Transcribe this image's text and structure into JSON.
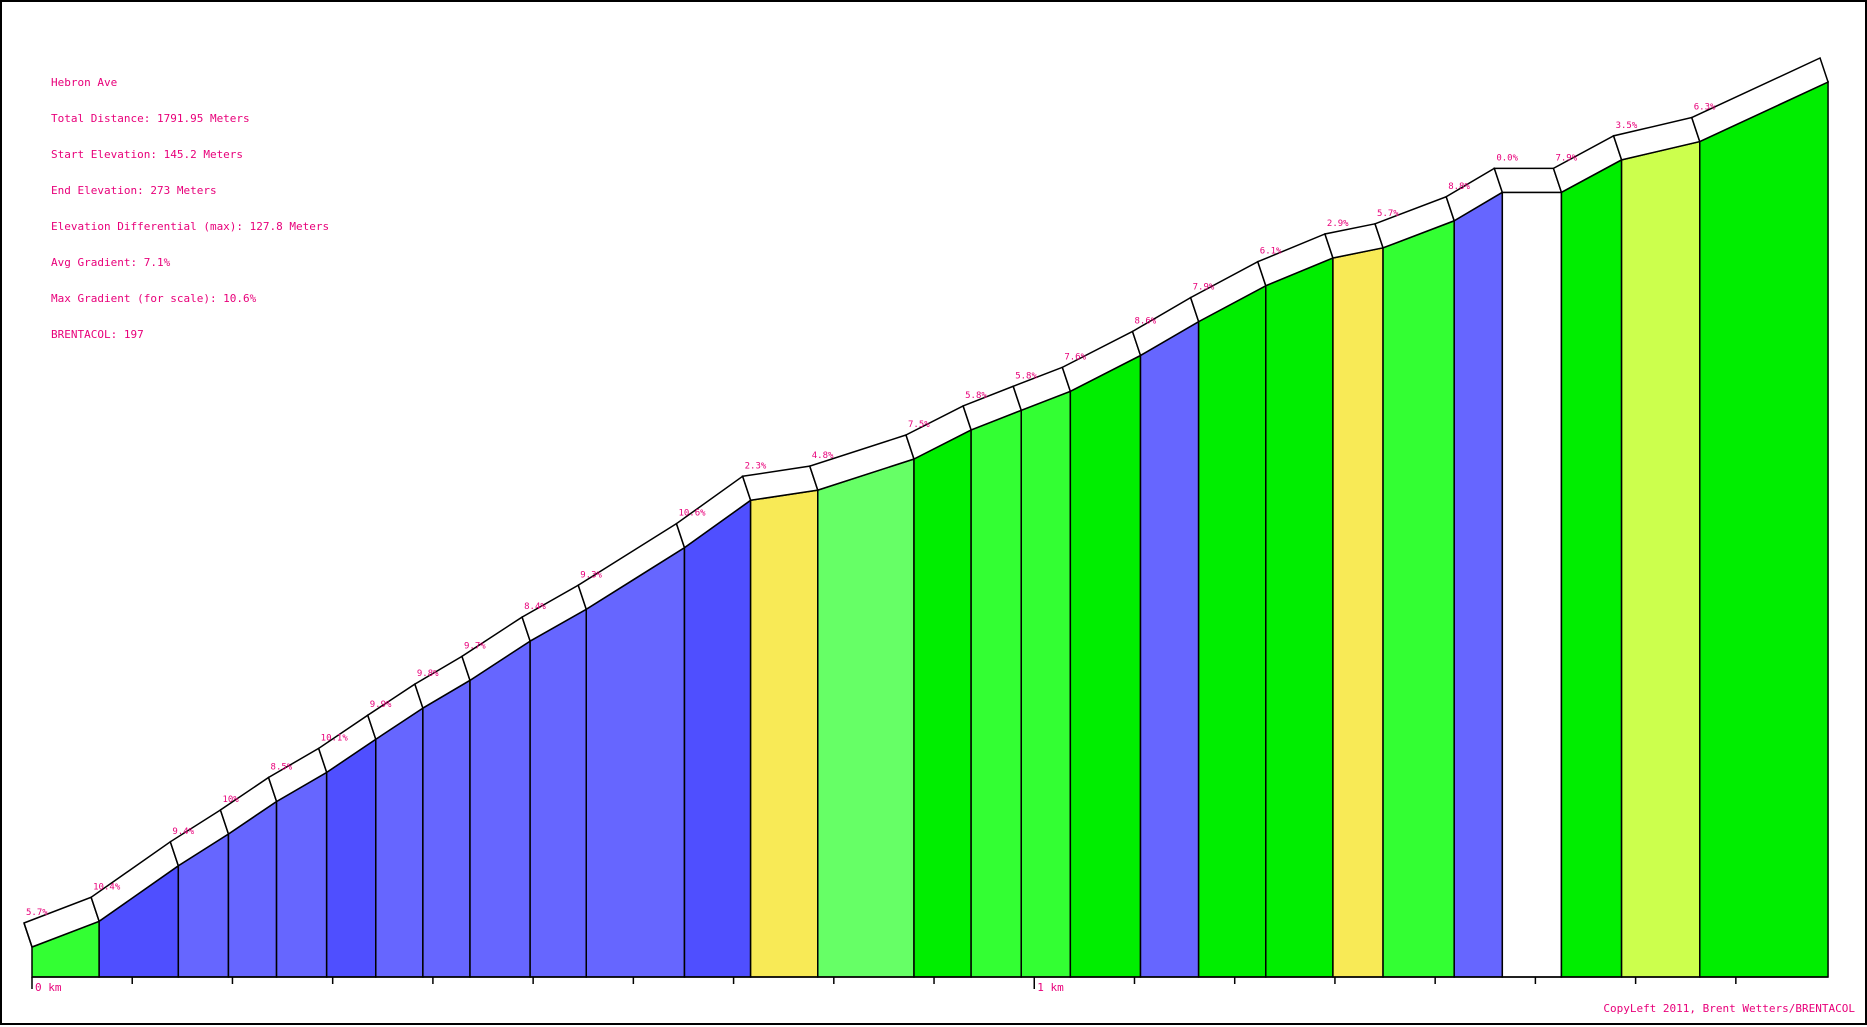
{
  "info": {
    "name": "Hebron Ave",
    "total_distance": "Total Distance: 1791.95 Meters",
    "start_elevation": "Start Elevation: 145.2 Meters",
    "end_elevation": "End Elevation: 273 Meters",
    "elevation_differential": "Elevation Differential (max): 127.8 Meters",
    "avg_gradient": "Avg Gradient: 7.1%",
    "max_gradient": "Max Gradient (for scale): 10.6%",
    "brentacol": "BRENTACOL: 197"
  },
  "copyleft": "CopyLeft 2011, Brent Wetters/BRENTACOL",
  "colors": {
    "text": "#e8007a",
    "grade_0_3": "#ffffff",
    "grade_3_4": "#ccff4d",
    "grade_4_5": "#f8ea56",
    "grade_5_7": "#66ff66",
    "grade_5_7_alt": "#33ff33",
    "grade_7_9": "#00ee00",
    "grade_8_10": "#6666ff",
    "grade_10_plus": "#4f4fff"
  },
  "chart_data": {
    "type": "area",
    "x_unit": "km",
    "xlim": [
      0,
      1.79195
    ],
    "x_ticks": [
      {
        "value": 0,
        "label": "0 km"
      },
      {
        "value": 1,
        "label": "1 km"
      }
    ],
    "elevation_range_m": [
      145.2,
      273
    ],
    "segments": [
      {
        "start_km": 0.0,
        "end_km": 0.067,
        "start_elev": 145.2,
        "end_elev": 149.0,
        "gradient_label": "5.7%",
        "color": "#33ff33"
      },
      {
        "start_km": 0.067,
        "end_km": 0.146,
        "start_elev": 149.0,
        "end_elev": 157.2,
        "gradient_label": "10.4%",
        "color": "#4f4fff"
      },
      {
        "start_km": 0.146,
        "end_km": 0.196,
        "start_elev": 157.2,
        "end_elev": 161.9,
        "gradient_label": "9.4%",
        "color": "#6666ff"
      },
      {
        "start_km": 0.196,
        "end_km": 0.244,
        "start_elev": 161.9,
        "end_elev": 166.7,
        "gradient_label": "10%",
        "color": "#6666ff"
      },
      {
        "start_km": 0.244,
        "end_km": 0.294,
        "start_elev": 166.7,
        "end_elev": 171.0,
        "gradient_label": "8.5%",
        "color": "#6666ff"
      },
      {
        "start_km": 0.294,
        "end_km": 0.343,
        "start_elev": 171.0,
        "end_elev": 175.9,
        "gradient_label": "10.1%",
        "color": "#4f4fff"
      },
      {
        "start_km": 0.343,
        "end_km": 0.39,
        "start_elev": 175.9,
        "end_elev": 180.5,
        "gradient_label": "9.9%",
        "color": "#6666ff"
      },
      {
        "start_km": 0.39,
        "end_km": 0.437,
        "start_elev": 180.5,
        "end_elev": 184.6,
        "gradient_label": "9.8%",
        "color": "#6666ff"
      },
      {
        "start_km": 0.437,
        "end_km": 0.497,
        "start_elev": 184.6,
        "end_elev": 190.4,
        "gradient_label": "9.7%",
        "color": "#6666ff"
      },
      {
        "start_km": 0.497,
        "end_km": 0.553,
        "start_elev": 190.4,
        "end_elev": 195.1,
        "gradient_label": "8.4%",
        "color": "#6666ff"
      },
      {
        "start_km": 0.553,
        "end_km": 0.651,
        "start_elev": 195.1,
        "end_elev": 204.2,
        "gradient_label": "9.3%",
        "color": "#6666ff"
      },
      {
        "start_km": 0.651,
        "end_km": 0.717,
        "start_elev": 204.2,
        "end_elev": 211.2,
        "gradient_label": "10.6%",
        "color": "#4f4fff"
      },
      {
        "start_km": 0.717,
        "end_km": 0.784,
        "start_elev": 211.2,
        "end_elev": 212.7,
        "gradient_label": "2.3%",
        "color": "#f8ea56"
      },
      {
        "start_km": 0.784,
        "end_km": 0.88,
        "start_elev": 212.7,
        "end_elev": 217.3,
        "gradient_label": "4.8%",
        "color": "#66ff66"
      },
      {
        "start_km": 0.88,
        "end_km": 0.937,
        "start_elev": 217.3,
        "end_elev": 221.6,
        "gradient_label": "7.5%",
        "color": "#00ee00"
      },
      {
        "start_km": 0.937,
        "end_km": 0.987,
        "start_elev": 221.6,
        "end_elev": 224.5,
        "gradient_label": "5.8%",
        "color": "#33ff33"
      },
      {
        "start_km": 0.987,
        "end_km": 1.036,
        "start_elev": 224.5,
        "end_elev": 227.3,
        "gradient_label": "5.8%",
        "color": "#33ff33"
      },
      {
        "start_km": 1.036,
        "end_km": 1.106,
        "start_elev": 227.3,
        "end_elev": 232.6,
        "gradient_label": "7.6%",
        "color": "#00ee00"
      },
      {
        "start_km": 1.106,
        "end_km": 1.164,
        "start_elev": 232.6,
        "end_elev": 237.6,
        "gradient_label": "8.6%",
        "color": "#6666ff"
      },
      {
        "start_km": 1.164,
        "end_km": 1.231,
        "start_elev": 237.6,
        "end_elev": 242.9,
        "gradient_label": "7.9%",
        "color": "#00ee00"
      },
      {
        "start_km": 1.231,
        "end_km": 1.298,
        "start_elev": 242.9,
        "end_elev": 247.0,
        "gradient_label": "6.1%",
        "color": "#00ee00"
      },
      {
        "start_km": 1.298,
        "end_km": 1.348,
        "start_elev": 247.0,
        "end_elev": 248.5,
        "gradient_label": "2.9%",
        "color": "#f8ea56"
      },
      {
        "start_km": 1.348,
        "end_km": 1.419,
        "start_elev": 248.5,
        "end_elev": 252.5,
        "gradient_label": "5.7%",
        "color": "#33ff33"
      },
      {
        "start_km": 1.419,
        "end_km": 1.467,
        "start_elev": 252.5,
        "end_elev": 256.7,
        "gradient_label": "8.8%",
        "color": "#6666ff"
      },
      {
        "start_km": 1.467,
        "end_km": 1.526,
        "start_elev": 256.7,
        "end_elev": 256.7,
        "gradient_label": "0.0%",
        "color": "#ffffff"
      },
      {
        "start_km": 1.526,
        "end_km": 1.586,
        "start_elev": 256.7,
        "end_elev": 261.5,
        "gradient_label": "7.9%",
        "color": "#00ee00"
      },
      {
        "start_km": 1.586,
        "end_km": 1.664,
        "start_elev": 261.5,
        "end_elev": 264.2,
        "gradient_label": "3.5%",
        "color": "#ccff4d"
      },
      {
        "start_km": 1.664,
        "end_km": 1.792,
        "start_elev": 264.2,
        "end_elev": 273.0,
        "gradient_label": "6.3%",
        "color": "#00ee00"
      }
    ]
  }
}
